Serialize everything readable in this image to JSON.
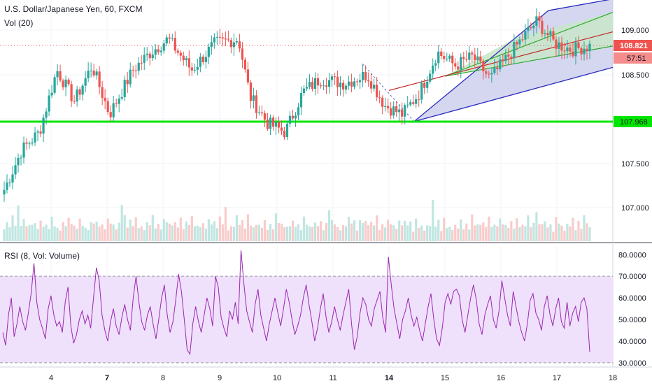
{
  "legend": {
    "title": "U.S. Dollar/Japanese Yen, 60, FXCM",
    "vol": "Vol (20)",
    "rsi": "RSI (8, Vol: Volume)"
  },
  "colors": {
    "up": "#26a69a",
    "down": "#ef5350",
    "support": "#00e600",
    "price_line": "#ef5350",
    "rsi_line": "#9c27b0",
    "rsi_band": "#efe0fb",
    "channel_blue": "#2b2bbf",
    "channel_green": "#2fa82f",
    "channel_red": "#c62828"
  },
  "chart_data": [
    {
      "type": "candlestick",
      "title": "U.S. Dollar/Japanese Yen, 60, FXCM",
      "x_ticks": [
        "4",
        "7",
        "8",
        "9",
        "10",
        "11",
        "14",
        "15",
        "16",
        "17",
        "18"
      ],
      "ylim": [
        106.7,
        109.35
      ],
      "y_ticks": [
        "109.000",
        "108.500",
        "107.500",
        "107.000"
      ],
      "last_price": "108.821",
      "countdown": "57:51",
      "support_level": "107.968",
      "anchors": [
        {
          "t": 0.0,
          "p": 107.2
        },
        {
          "t": 0.03,
          "p": 107.65
        },
        {
          "t": 0.06,
          "p": 107.85
        },
        {
          "t": 0.09,
          "p": 108.55
        },
        {
          "t": 0.12,
          "p": 108.2
        },
        {
          "t": 0.15,
          "p": 108.6
        },
        {
          "t": 0.18,
          "p": 108.05
        },
        {
          "t": 0.22,
          "p": 108.55
        },
        {
          "t": 0.25,
          "p": 108.75
        },
        {
          "t": 0.28,
          "p": 108.9
        },
        {
          "t": 0.32,
          "p": 108.55
        },
        {
          "t": 0.36,
          "p": 108.85
        },
        {
          "t": 0.4,
          "p": 108.9
        },
        {
          "t": 0.42,
          "p": 108.25
        },
        {
          "t": 0.45,
          "p": 107.95
        },
        {
          "t": 0.48,
          "p": 107.85
        },
        {
          "t": 0.51,
          "p": 108.3
        },
        {
          "t": 0.54,
          "p": 108.45
        },
        {
          "t": 0.58,
          "p": 108.4
        },
        {
          "t": 0.62,
          "p": 108.5
        },
        {
          "t": 0.65,
          "p": 108.15
        },
        {
          "t": 0.68,
          "p": 108.05
        },
        {
          "t": 0.71,
          "p": 108.3
        },
        {
          "t": 0.74,
          "p": 108.75
        },
        {
          "t": 0.77,
          "p": 108.6
        },
        {
          "t": 0.8,
          "p": 108.7
        },
        {
          "t": 0.83,
          "p": 108.45
        },
        {
          "t": 0.86,
          "p": 108.7
        },
        {
          "t": 0.89,
          "p": 108.95
        },
        {
          "t": 0.91,
          "p": 109.1
        },
        {
          "t": 0.94,
          "p": 108.85
        },
        {
          "t": 0.97,
          "p": 108.78
        },
        {
          "t": 1.0,
          "p": 108.82
        }
      ]
    },
    {
      "type": "bar",
      "title": "Vol (20)",
      "pattern": [
        0.3,
        0.55,
        0.4,
        0.9,
        0.35,
        0.6,
        0.25,
        1.0,
        0.45,
        0.5
      ]
    },
    {
      "type": "line",
      "title": "RSI (8, Vol: Volume)",
      "ylim": [
        28,
        83
      ],
      "y_ticks": [
        "80.0000",
        "70.0000",
        "60.0000",
        "50.0000",
        "40.0000",
        "30.0000"
      ],
      "band": [
        30,
        70
      ],
      "values": [
        44,
        38,
        52,
        60,
        42,
        48,
        56,
        49,
        45,
        53,
        62,
        76,
        58,
        50,
        46,
        41,
        55,
        61,
        52,
        47,
        49,
        44,
        58,
        65,
        47,
        39,
        43,
        50,
        54,
        48,
        52,
        46,
        60,
        74,
        68,
        52,
        45,
        40,
        49,
        55,
        47,
        43,
        51,
        57,
        50,
        45,
        60,
        70,
        58,
        49,
        45,
        52,
        56,
        48,
        41,
        50,
        60,
        66,
        52,
        44,
        49,
        59,
        71,
        63,
        50,
        36,
        34,
        48,
        56,
        49,
        44,
        52,
        60,
        55,
        47,
        70,
        65,
        51,
        46,
        42,
        54,
        50,
        58,
        48,
        82,
        67,
        54,
        49,
        44,
        57,
        64,
        52,
        46,
        40,
        48,
        54,
        60,
        53,
        47,
        55,
        64,
        58,
        50,
        43,
        47,
        52,
        60,
        66,
        57,
        49,
        40,
        46,
        55,
        62,
        51,
        44,
        49,
        56,
        50,
        45,
        52,
        58,
        64,
        48,
        36,
        42,
        53,
        60,
        57,
        50,
        47,
        55,
        59,
        63,
        51,
        44,
        79,
        66,
        55,
        48,
        41,
        50,
        54,
        60,
        52,
        47,
        51,
        45,
        40,
        48,
        56,
        62,
        50,
        41,
        38,
        46,
        58,
        62,
        57,
        63,
        64,
        61,
        50,
        44,
        52,
        60,
        66,
        59,
        48,
        43,
        52,
        57,
        61,
        50,
        46,
        54,
        68,
        60,
        52,
        47,
        63,
        56,
        49,
        44,
        40,
        48,
        59,
        62,
        53,
        50,
        45,
        56,
        61,
        52,
        47,
        55,
        60,
        49,
        46,
        58,
        47,
        53,
        56,
        49,
        58,
        60,
        55,
        35
      ]
    }
  ]
}
